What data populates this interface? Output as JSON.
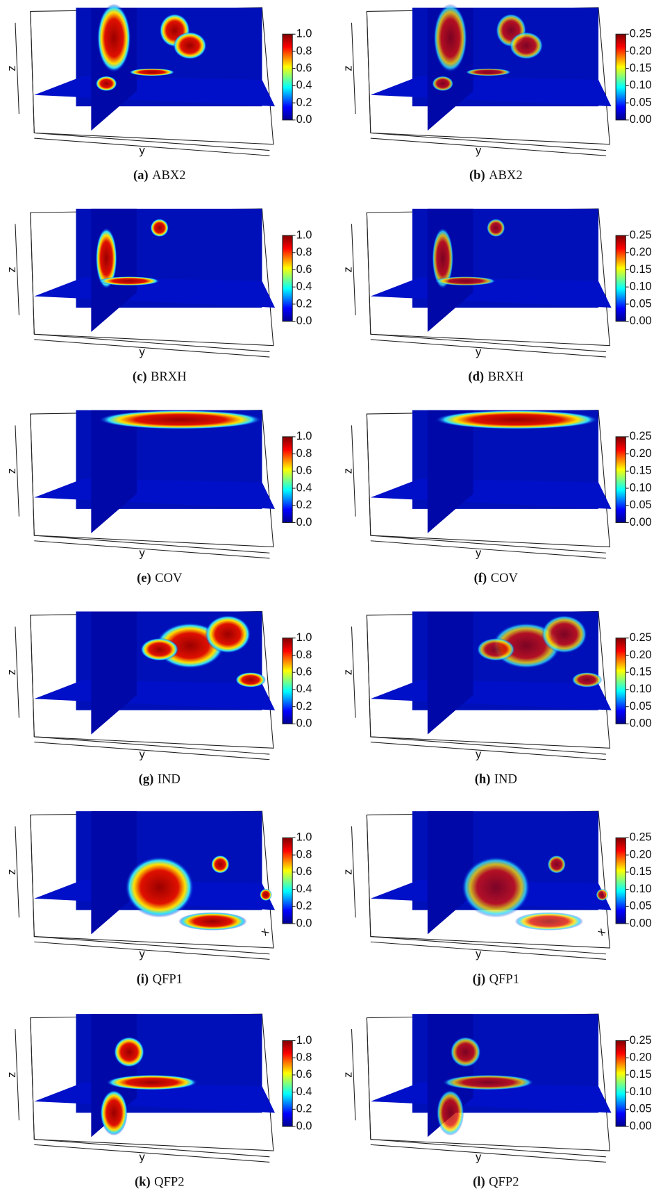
{
  "panels": [
    {
      "label": "(a)",
      "name": "ABX2",
      "axis_labels": [
        "z",
        "y"
      ],
      "colorbar": {
        "ticks": [
          {
            "value": 0,
            "label": "0.0"
          },
          0.2,
          0.4,
          0.6,
          0.8,
          {
            "value": 1,
            "label": "1.0"
          }
        ]
      }
    },
    {
      "label": "(b)",
      "name": "ABX2",
      "axis_labels": [
        "z",
        "y"
      ],
      "colorbar": {
        "ticks": [
          {
            "value": 0,
            "label": "0.00"
          },
          0.05,
          {
            "value": 0.1,
            "label": "0.10"
          },
          0.15,
          {
            "value": 0.2,
            "label": "0.20"
          },
          0.25
        ]
      }
    },
    {
      "label": "(c)",
      "name": "BRXH",
      "axis_labels": [
        "z",
        "y"
      ],
      "colorbar": {
        "ticks": [
          {
            "value": 0,
            "label": "0.0"
          },
          0.2,
          0.4,
          0.6,
          0.8,
          {
            "value": 1,
            "label": "1.0"
          }
        ]
      }
    },
    {
      "label": "(d)",
      "name": "BRXH",
      "axis_labels": [
        "z",
        "y"
      ],
      "colorbar": {
        "ticks": [
          {
            "value": 0,
            "label": "0.00"
          },
          0.05,
          {
            "value": 0.1,
            "label": "0.10"
          },
          0.15,
          {
            "value": 0.2,
            "label": "0.20"
          },
          0.25
        ]
      }
    },
    {
      "label": "(e)",
      "name": "COV",
      "axis_labels": [
        "z",
        "y"
      ],
      "colorbar": {
        "ticks": [
          {
            "value": 0,
            "label": "0.0"
          },
          0.2,
          0.4,
          0.6,
          0.8,
          {
            "value": 1,
            "label": "1.0"
          }
        ]
      }
    },
    {
      "label": "(f)",
      "name": "COV",
      "axis_labels": [
        "z",
        "y"
      ],
      "colorbar": {
        "ticks": [
          {
            "value": 0,
            "label": "0.00"
          },
          0.05,
          {
            "value": 0.1,
            "label": "0.10"
          },
          0.15,
          {
            "value": 0.2,
            "label": "0.20"
          },
          0.25
        ]
      }
    },
    {
      "label": "(g)",
      "name": "IND",
      "axis_labels": [
        "z",
        "y"
      ],
      "colorbar": {
        "ticks": [
          {
            "value": 0,
            "label": "0.0"
          },
          0.2,
          0.4,
          0.6,
          0.8,
          {
            "value": 1,
            "label": "1.0"
          }
        ]
      }
    },
    {
      "label": "(h)",
      "name": "IND",
      "axis_labels": [
        "z",
        "y"
      ],
      "colorbar": {
        "ticks": [
          {
            "value": 0,
            "label": "0.00"
          },
          0.05,
          {
            "value": 0.1,
            "label": "0.10"
          },
          0.15,
          {
            "value": 0.2,
            "label": "0.20"
          },
          0.25
        ]
      }
    },
    {
      "label": "(i)",
      "name": "QFP1",
      "axis_labels": [
        "z",
        "y",
        "x"
      ],
      "colorbar": {
        "ticks": [
          {
            "value": 0,
            "label": "0.0"
          },
          0.2,
          0.4,
          0.6,
          0.8,
          {
            "value": 1,
            "label": "1.0"
          }
        ]
      }
    },
    {
      "label": "(j)",
      "name": "QFP1",
      "axis_labels": [
        "z",
        "y",
        "x"
      ],
      "colorbar": {
        "ticks": [
          {
            "value": 0,
            "label": "0.00"
          },
          0.05,
          {
            "value": 0.1,
            "label": "0.10"
          },
          0.15,
          {
            "value": 0.2,
            "label": "0.20"
          },
          0.25
        ]
      }
    },
    {
      "label": "(k)",
      "name": "QFP2",
      "axis_labels": [
        "z",
        "y"
      ],
      "colorbar": {
        "ticks": [
          {
            "value": 0,
            "label": "0.0"
          },
          0.2,
          0.4,
          0.6,
          0.8,
          {
            "value": 1,
            "label": "1.0"
          }
        ]
      }
    },
    {
      "label": "(l)",
      "name": "QFP2",
      "axis_labels": [
        "z",
        "y"
      ],
      "colorbar": {
        "ticks": [
          {
            "value": 0,
            "label": "0.00"
          },
          0.05,
          {
            "value": 0.1,
            "label": "0.10"
          },
          0.15,
          {
            "value": 0.2,
            "label": "0.20"
          },
          0.25
        ]
      }
    }
  ]
}
